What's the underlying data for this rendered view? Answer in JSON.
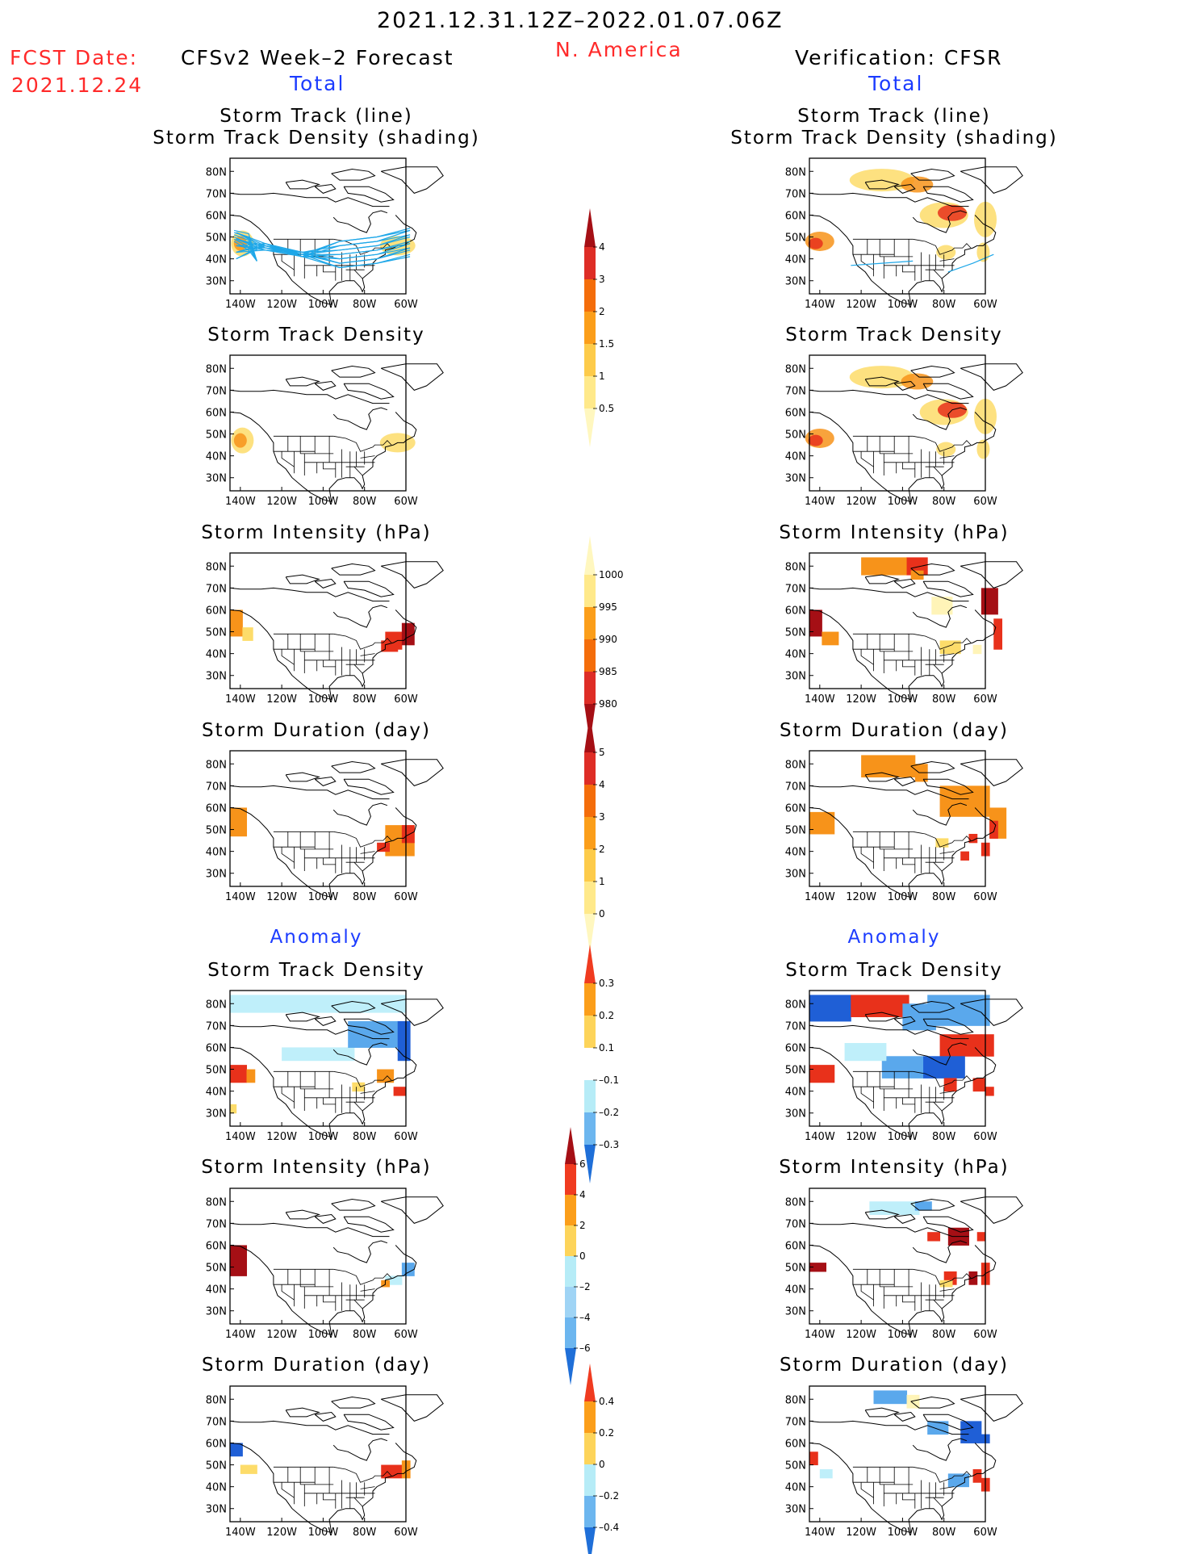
{
  "header": {
    "period": "2021.12.31.12Z–2022.01.07.06Z",
    "region": "N. America",
    "fcst_label": "FCST Date:",
    "fcst_date": "2021.12.24",
    "left_title": "CFSv2 Week–2 Forecast",
    "right_title": "Verification: CFSR",
    "left_subtitle": "Total",
    "right_subtitle": "Total"
  },
  "sections": {
    "anomaly_left": "Anomaly",
    "anomaly_right": "Anomaly"
  },
  "panel_titles": {
    "track_line": "Storm Track (line)",
    "track_shading": "Storm Track Density (shading)",
    "density": "Storm Track Density",
    "intensity": "Storm Intensity (hPa)",
    "duration": "Storm Duration (day)"
  },
  "map_axes": {
    "lat_ticks": [
      "80N",
      "70N",
      "60N",
      "50N",
      "40N",
      "30N"
    ],
    "lon_ticks": [
      "140W",
      "120W",
      "100W",
      "80W",
      "60W"
    ]
  },
  "colorbars": [
    {
      "id": "total-density",
      "labels": [
        "4",
        "3",
        "2",
        "1.5",
        "1",
        "0.5"
      ],
      "colors": [
        "#a50f15",
        "#de2d26",
        "#f46d0a",
        "#fb9e1a",
        "#fdcb4a",
        "#ffe98a",
        "#fff7bf"
      ]
    },
    {
      "id": "total-intensity",
      "labels": [
        "1000",
        "995",
        "990",
        "985",
        "980"
      ],
      "colors": [
        "#fff7bf",
        "#ffe98a",
        "#fb9e1a",
        "#f46d0a",
        "#de2d26",
        "#a50f15"
      ]
    },
    {
      "id": "total-duration",
      "labels": [
        "5",
        "4",
        "3",
        "2",
        "1",
        "0"
      ],
      "colors": [
        "#a50f15",
        "#de2d26",
        "#f46d0a",
        "#fb9e1a",
        "#fdcb4a",
        "#ffe98a",
        "#fff7bf"
      ]
    },
    {
      "id": "anom-density",
      "labels": [
        "0.3",
        "0.2",
        "0.1",
        "–0.1",
        "–0.2",
        "–0.3"
      ],
      "colors": [
        "#f03b20",
        "#fb9e1a",
        "#fdd45a",
        "#ffffff",
        "#b6ecf7",
        "#6cb6ef",
        "#1f6fd8"
      ]
    },
    {
      "id": "anom-intensity",
      "labels": [
        "6",
        "4",
        "2",
        "0",
        "–2",
        "–4",
        "–6"
      ],
      "colors": [
        "#a50f15",
        "#f03b20",
        "#fb9e1a",
        "#fdd45a",
        "#b6ecf7",
        "#9fd4f5",
        "#6cb6ef",
        "#1f6fd8"
      ]
    },
    {
      "id": "anom-duration",
      "labels": [
        "0.4",
        "0.2",
        "0",
        "–0.2",
        "–0.4"
      ],
      "colors": [
        "#f03b20",
        "#fb9e1a",
        "#fdd45a",
        "#b6ecf7",
        "#6cb6ef",
        "#1f6fd8"
      ]
    }
  ],
  "colors": {
    "track_line": "#1ea7e8",
    "dark_red": "#a50f15",
    "red": "#e8311b",
    "orange": "#f7931a",
    "yellow": "#fddc6a",
    "pale": "#fff4b8",
    "light_blue": "#bfeffa",
    "mid_blue": "#5aa8ec",
    "dark_blue": "#1f5fd6"
  }
}
